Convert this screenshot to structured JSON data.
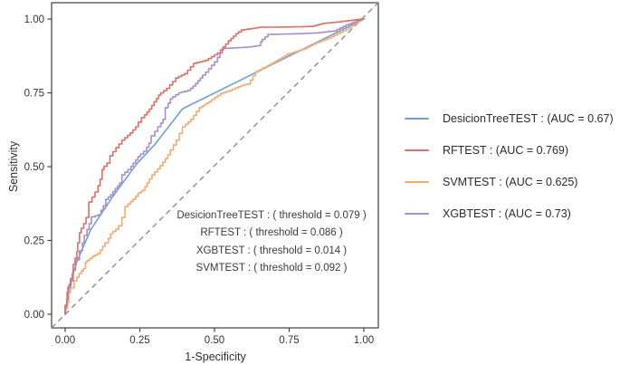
{
  "figure": {
    "background": "#ffffff",
    "panel_border_color": "#3f3f3f",
    "tick_color": "#3f3f3f",
    "tick_label_color": "#333333",
    "diagonal_color": "#8c8c8c"
  },
  "axes": {
    "x_label": "1-Specificity",
    "y_label": "Sensitivity",
    "x_ticks": [
      "0.00",
      "0.25",
      "0.50",
      "0.75",
      "1.00"
    ],
    "y_ticks": [
      "0.00",
      "0.25",
      "0.50",
      "0.75",
      "1.00"
    ]
  },
  "annotation": {
    "lines": [
      "DesicionTreeTEST : ( threshold = 0.079 )",
      "RFTEST : ( threshold = 0.086 )",
      "XGBTEST : ( threshold = 0.014 )",
      "SVMTEST : ( threshold = 0.092 )"
    ]
  },
  "legend": {
    "items": [
      {
        "label": "DesicionTreeTEST : (AUC = 0.67)",
        "color": "#6BA1D4"
      },
      {
        "label": "RFTEST : (AUC = 0.769)",
        "color": "#DE6E68"
      },
      {
        "label": "SVMTEST : (AUC = 0.625)",
        "color": "#F1AB70"
      },
      {
        "label": "XGBTEST : (AUC = 0.73)",
        "color": "#A78FC9"
      }
    ]
  },
  "chart_data": {
    "type": "line",
    "title": "",
    "xlabel": "1-Specificity",
    "ylabel": "Sensitivity",
    "xlim": [
      0,
      1
    ],
    "ylim": [
      0,
      1
    ],
    "grid": false,
    "legend_position": "right",
    "diagonal_reference": {
      "style": "dashed",
      "from": [
        0,
        0
      ],
      "to": [
        1,
        1
      ]
    },
    "series": [
      {
        "name": "DesicionTreeTEST",
        "auc": 0.67,
        "threshold": 0.079,
        "color": "#6BA1D4",
        "interpolation": "linear",
        "points": [
          [
            0,
            0
          ],
          [
            0.012,
            0.09
          ],
          [
            0.04,
            0.18
          ],
          [
            0.085,
            0.285
          ],
          [
            0.16,
            0.4
          ],
          [
            0.24,
            0.51
          ],
          [
            0.3,
            0.575
          ],
          [
            0.393,
            0.696
          ],
          [
            1,
            1
          ]
        ]
      },
      {
        "name": "RFTEST",
        "auc": 0.769,
        "threshold": 0.086,
        "color": "#DE6E68",
        "interpolation": "step",
        "points": [
          [
            0,
            0
          ],
          [
            0.005,
            0.03
          ],
          [
            0.009,
            0.052
          ],
          [
            0.018,
            0.092
          ],
          [
            0.024,
            0.12
          ],
          [
            0.027,
            0.138
          ],
          [
            0.033,
            0.169
          ],
          [
            0.039,
            0.19
          ],
          [
            0.042,
            0.212
          ],
          [
            0.048,
            0.242
          ],
          [
            0.054,
            0.276
          ],
          [
            0.07,
            0.307
          ],
          [
            0.079,
            0.328
          ],
          [
            0.09,
            0.38
          ],
          [
            0.11,
            0.414
          ],
          [
            0.124,
            0.457
          ],
          [
            0.13,
            0.49
          ],
          [
            0.15,
            0.512
          ],
          [
            0.16,
            0.537
          ],
          [
            0.18,
            0.564
          ],
          [
            0.2,
            0.59
          ],
          [
            0.227,
            0.614
          ],
          [
            0.245,
            0.635
          ],
          [
            0.266,
            0.666
          ],
          [
            0.29,
            0.695
          ],
          [
            0.306,
            0.72
          ],
          [
            0.32,
            0.742
          ],
          [
            0.35,
            0.765
          ],
          [
            0.38,
            0.8
          ],
          [
            0.41,
            0.815
          ],
          [
            0.44,
            0.85
          ],
          [
            0.48,
            0.86
          ],
          [
            0.52,
            0.885
          ],
          [
            0.555,
            0.926
          ],
          [
            0.58,
            0.95
          ],
          [
            0.6,
            0.963
          ],
          [
            0.66,
            0.972
          ],
          [
            0.75,
            0.973
          ],
          [
            0.833,
            0.975
          ],
          [
            0.87,
            0.985
          ],
          [
            0.92,
            0.99
          ],
          [
            1,
            1
          ]
        ]
      },
      {
        "name": "SVMTEST",
        "auc": 0.625,
        "threshold": 0.092,
        "color": "#F1AB70",
        "interpolation": "step",
        "points": [
          [
            0,
            0
          ],
          [
            0.008,
            0.02
          ],
          [
            0.012,
            0.04
          ],
          [
            0.018,
            0.074
          ],
          [
            0.03,
            0.089
          ],
          [
            0.039,
            0.113
          ],
          [
            0.054,
            0.138
          ],
          [
            0.068,
            0.155
          ],
          [
            0.073,
            0.175
          ],
          [
            0.1,
            0.196
          ],
          [
            0.118,
            0.206
          ],
          [
            0.133,
            0.23
          ],
          [
            0.145,
            0.242
          ],
          [
            0.16,
            0.273
          ],
          [
            0.179,
            0.288
          ],
          [
            0.19,
            0.3
          ],
          [
            0.2,
            0.328
          ],
          [
            0.21,
            0.365
          ],
          [
            0.236,
            0.39
          ],
          [
            0.252,
            0.41
          ],
          [
            0.267,
            0.42
          ],
          [
            0.282,
            0.445
          ],
          [
            0.3,
            0.472
          ],
          [
            0.327,
            0.503
          ],
          [
            0.352,
            0.54
          ],
          [
            0.382,
            0.59
          ],
          [
            0.403,
            0.635
          ],
          [
            0.43,
            0.66
          ],
          [
            0.458,
            0.7
          ],
          [
            0.49,
            0.72
          ],
          [
            0.53,
            0.748
          ],
          [
            0.56,
            0.758
          ],
          [
            0.6,
            0.775
          ],
          [
            0.62,
            0.78
          ],
          [
            0.645,
            0.82
          ],
          [
            0.7,
            0.85
          ],
          [
            0.75,
            0.88
          ],
          [
            0.81,
            0.9
          ],
          [
            0.85,
            0.92
          ],
          [
            0.89,
            0.935
          ],
          [
            0.93,
            0.955
          ],
          [
            0.96,
            0.97
          ],
          [
            1,
            1
          ]
        ]
      },
      {
        "name": "XGBTEST",
        "auc": 0.73,
        "threshold": 0.014,
        "color": "#A78FC9",
        "interpolation": "step",
        "points": [
          [
            0,
            0
          ],
          [
            0.006,
            0.03
          ],
          [
            0.012,
            0.074
          ],
          [
            0.02,
            0.1
          ],
          [
            0.027,
            0.113
          ],
          [
            0.035,
            0.15
          ],
          [
            0.048,
            0.184
          ],
          [
            0.058,
            0.215
          ],
          [
            0.064,
            0.242
          ],
          [
            0.073,
            0.267
          ],
          [
            0.088,
            0.307
          ],
          [
            0.1,
            0.33
          ],
          [
            0.12,
            0.337
          ],
          [
            0.136,
            0.368
          ],
          [
            0.145,
            0.39
          ],
          [
            0.16,
            0.405
          ],
          [
            0.176,
            0.426
          ],
          [
            0.19,
            0.445
          ],
          [
            0.2,
            0.472
          ],
          [
            0.22,
            0.49
          ],
          [
            0.236,
            0.512
          ],
          [
            0.252,
            0.534
          ],
          [
            0.273,
            0.552
          ],
          [
            0.288,
            0.58
          ],
          [
            0.3,
            0.604
          ],
          [
            0.32,
            0.635
          ],
          [
            0.335,
            0.66
          ],
          [
            0.345,
            0.7
          ],
          [
            0.36,
            0.73
          ],
          [
            0.39,
            0.75
          ],
          [
            0.42,
            0.758
          ],
          [
            0.437,
            0.773
          ],
          [
            0.46,
            0.8
          ],
          [
            0.48,
            0.82
          ],
          [
            0.51,
            0.855
          ],
          [
            0.535,
            0.9
          ],
          [
            0.62,
            0.905
          ],
          [
            0.655,
            0.91
          ],
          [
            0.66,
            0.923
          ],
          [
            0.688,
            0.948
          ],
          [
            0.78,
            0.95
          ],
          [
            0.85,
            0.953
          ],
          [
            0.91,
            0.96
          ],
          [
            0.95,
            0.98
          ],
          [
            1,
            1
          ]
        ]
      }
    ]
  }
}
